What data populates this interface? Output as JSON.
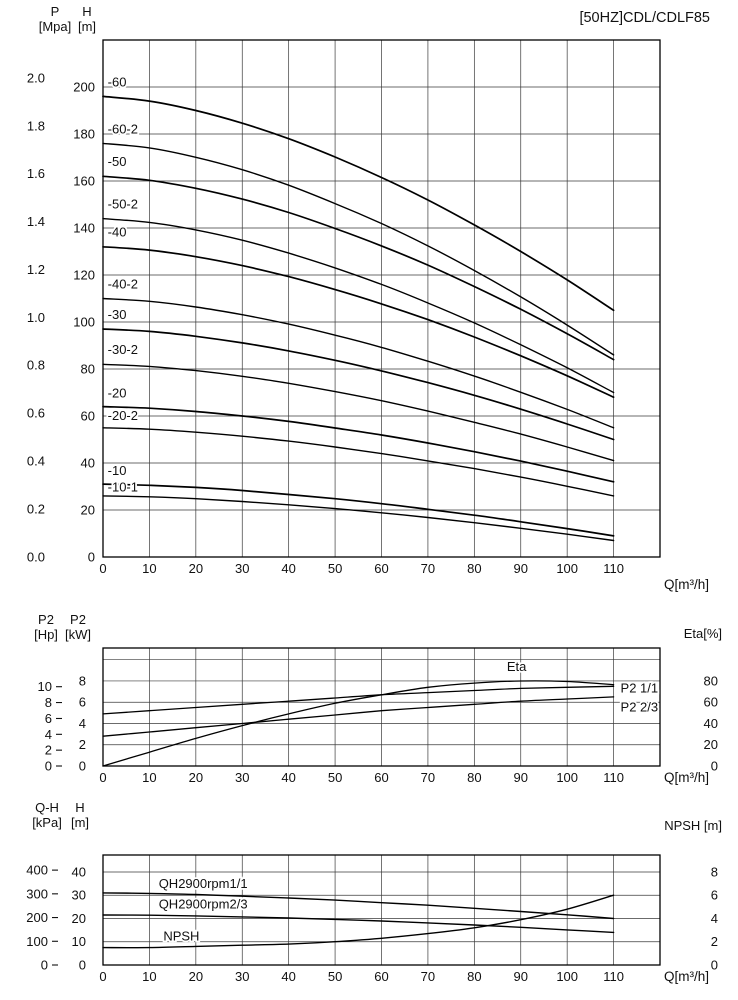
{
  "title": "[50HZ]CDL/CDLF85",
  "x_axis_label": "Q[m³/h]",
  "charts": {
    "hq": {
      "axis_headers": {
        "outer_top": "P",
        "outer_unit": "[Mpa]",
        "inner_top": "H",
        "inner_unit": "[m]"
      },
      "x_label": "Q[m³/h]"
    },
    "power": {
      "axis_headers": {
        "outer_top": "P2",
        "outer_unit": "[Hp]",
        "inner_top": "P2",
        "inner_unit": "[kW]"
      },
      "right_label": "Eta[%]",
      "x_label": "Q[m³/h]"
    },
    "qh": {
      "axis_headers": {
        "outer_top": "Q-H",
        "outer_unit": "[kPa]",
        "inner_top": "H",
        "inner_unit": "[m]"
      },
      "right_label": "NPSH [m]",
      "x_label": "Q[m³/h]"
    }
  },
  "chart_data": [
    {
      "type": "line",
      "title": "[50HZC]DL/CDLF85 head curves",
      "xlabel": "Q[m³/h]",
      "ylabels": [
        "P [Mpa]",
        "H [m]"
      ],
      "xlim": [
        0,
        120
      ],
      "ylim_m": [
        0,
        220
      ],
      "x_ticks": [
        0,
        10,
        20,
        30,
        40,
        50,
        60,
        70,
        80,
        90,
        100,
        110
      ],
      "x": [
        0,
        10,
        20,
        30,
        40,
        50,
        60,
        70,
        80,
        90,
        100,
        110
      ],
      "grid_scale": "H",
      "grid_y": [
        20,
        40,
        60,
        80,
        100,
        120,
        140,
        160,
        180,
        200
      ],
      "tick_cols": [
        {
          "axis": "P [Mpa]",
          "items": [
            {
              "t": "0.0",
              "v": 0
            },
            {
              "t": "0.2",
              "v": 20.4
            },
            {
              "t": "0.4",
              "v": 40.8
            },
            {
              "t": "0.6",
              "v": 61.2
            },
            {
              "t": "0.8",
              "v": 81.6
            },
            {
              "t": "1.0",
              "v": 101.9
            },
            {
              "t": "1.2",
              "v": 122.3
            },
            {
              "t": "1.4",
              "v": 142.7
            },
            {
              "t": "1.6",
              "v": 163.1
            },
            {
              "t": "1.8",
              "v": 183.5
            },
            {
              "t": "2.0",
              "v": 203.9
            }
          ]
        },
        {
          "axis": "H [m]",
          "items": [
            {
              "t": "0",
              "v": 0
            },
            {
              "t": "20",
              "v": 20
            },
            {
              "t": "40",
              "v": 40
            },
            {
              "t": "60",
              "v": 60
            },
            {
              "t": "80",
              "v": 80
            },
            {
              "t": "100",
              "v": 100
            },
            {
              "t": "120",
              "v": 120
            },
            {
              "t": "140",
              "v": 140
            },
            {
              "t": "160",
              "v": 160
            },
            {
              "t": "180",
              "v": 180
            },
            {
              "t": "200",
              "v": 200
            }
          ]
        }
      ],
      "series": [
        {
          "name": "-60",
          "scale": "H",
          "w": 1.7,
          "label": [
            1,
            202
          ],
          "y": [
            196,
            194,
            190,
            184.6,
            178,
            170.2,
            161.5,
            151.9,
            141.3,
            130,
            117.9,
            105
          ]
        },
        {
          "name": "-60-2",
          "scale": "H",
          "w": 1.4,
          "label": [
            1,
            182
          ],
          "y": [
            176,
            174.1,
            170.1,
            164.8,
            158.2,
            150.4,
            141.9,
            132.4,
            121.9,
            110.7,
            98.7,
            86
          ]
        },
        {
          "name": "-50",
          "scale": "H",
          "w": 1.7,
          "label": [
            1,
            168
          ],
          "y": [
            162,
            160.3,
            156.9,
            152.3,
            146.6,
            139.8,
            132.4,
            124.2,
            115.1,
            105.4,
            95,
            84
          ]
        },
        {
          "name": "-50-2",
          "scale": "H",
          "w": 1.4,
          "label": [
            1,
            150
          ],
          "y": [
            144,
            142.4,
            139.2,
            134.8,
            129.3,
            123,
            116,
            108.1,
            99.6,
            90.3,
            80.5,
            70
          ]
        },
        {
          "name": "-40",
          "scale": "H",
          "w": 1.7,
          "label": [
            1,
            138
          ],
          "y": [
            132,
            130.6,
            127.8,
            124,
            119.3,
            113.8,
            107.7,
            101,
            93.6,
            85.6,
            77.1,
            68
          ]
        },
        {
          "name": "-40-2",
          "scale": "H",
          "w": 1.4,
          "label": [
            1,
            116
          ],
          "y": [
            110,
            108.8,
            106.4,
            103.1,
            99.1,
            94.4,
            89.2,
            83.3,
            77,
            70.1,
            62.8,
            55
          ]
        },
        {
          "name": "-30",
          "scale": "H",
          "w": 1.7,
          "label": [
            1,
            103
          ],
          "y": [
            97,
            96,
            93.9,
            91.1,
            87.7,
            83.7,
            79.2,
            74.2,
            68.8,
            62.9,
            56.6,
            50
          ]
        },
        {
          "name": "-30-2",
          "scale": "H",
          "w": 1.4,
          "label": [
            1,
            88
          ],
          "y": [
            82,
            81.1,
            79.3,
            76.9,
            73.9,
            70.4,
            66.5,
            62.1,
            57.3,
            52.3,
            46.8,
            41
          ]
        },
        {
          "name": "-20",
          "scale": "H",
          "w": 1.7,
          "label": [
            1,
            69.5
          ],
          "y": [
            64,
            63.3,
            61.9,
            60,
            57.7,
            54.9,
            51.9,
            48.5,
            44.8,
            40.8,
            36.5,
            32
          ]
        },
        {
          "name": "-20-2",
          "scale": "H",
          "w": 1.4,
          "label": [
            1,
            60
          ],
          "y": [
            55,
            54.4,
            53.1,
            51.4,
            49.3,
            46.8,
            44,
            40.9,
            37.6,
            34,
            30.1,
            26
          ]
        },
        {
          "name": "-10",
          "scale": "H",
          "w": 1.7,
          "label": [
            1,
            36.5
          ],
          "y": [
            31,
            30.5,
            29.6,
            28.3,
            26.6,
            24.8,
            22.7,
            20.3,
            17.8,
            15,
            12.1,
            9
          ]
        },
        {
          "name": "-10-1",
          "scale": "H",
          "w": 1.4,
          "label": [
            1,
            29.5
          ],
          "y": [
            26,
            25.6,
            24.8,
            23.6,
            22.2,
            20.6,
            18.8,
            16.8,
            14.6,
            12.2,
            9.7,
            7
          ]
        }
      ]
    },
    {
      "type": "line",
      "title": "Power and efficiency curves",
      "xlabel": "Q[m³/h]",
      "ylabels": [
        "P2 [Hp]",
        "P2 [kW]"
      ],
      "right_label": "Eta[%]",
      "xlim": [
        0,
        120
      ],
      "ylim_kw": [
        0,
        11.1
      ],
      "ylim_eta": [
        0,
        111
      ],
      "x_ticks": [
        0,
        10,
        20,
        30,
        40,
        50,
        60,
        70,
        80,
        90,
        100,
        110
      ],
      "x": [
        0,
        10,
        20,
        30,
        40,
        50,
        60,
        70,
        80,
        90,
        100,
        110
      ],
      "grid_scale": "kw",
      "grid_y": [
        2,
        4,
        6,
        8,
        10
      ],
      "tick_cols": [
        {
          "axis": "P2 [Hp]",
          "items": [
            {
              "t": "0",
              "v": 0
            },
            {
              "t": "2",
              "v": 1.49
            },
            {
              "t": "4",
              "v": 2.98
            },
            {
              "t": "6",
              "v": 4.47
            },
            {
              "t": "8",
              "v": 5.97
            },
            {
              "t": "10",
              "v": 7.46
            }
          ]
        },
        {
          "axis": "P2 [kW]",
          "items": [
            {
              "t": "0",
              "v": 0
            },
            {
              "t": "2",
              "v": 2
            },
            {
              "t": "4",
              "v": 4
            },
            {
              "t": "6",
              "v": 6
            },
            {
              "t": "8",
              "v": 8
            }
          ]
        },
        {
          "axis": "Eta [%]",
          "items": [
            {
              "t": "0",
              "v": 0
            },
            {
              "t": "20",
              "v": 20
            },
            {
              "t": "40",
              "v": 40
            },
            {
              "t": "60",
              "v": 60
            },
            {
              "t": "80",
              "v": 80
            }
          ]
        }
      ],
      "series": [
        {
          "name": "Eta",
          "scale": "eta",
          "w": 1.3,
          "label": [
            87,
            93
          ],
          "y": [
            0,
            13,
            26,
            38,
            49,
            59,
            67,
            74,
            78,
            80,
            79.5,
            76.5
          ]
        },
        {
          "name": "P2 1/1",
          "scale": "kw",
          "w": 1.3,
          "label": [
            111.5,
            7.3
          ],
          "y": [
            4.9,
            5.2,
            5.5,
            5.8,
            6.1,
            6.4,
            6.7,
            6.9,
            7.1,
            7.3,
            7.4,
            7.5
          ]
        },
        {
          "name": "P2 2/3",
          "scale": "kw",
          "w": 1.3,
          "label": [
            111.5,
            5.5
          ],
          "y": [
            2.8,
            3.2,
            3.6,
            4,
            4.4,
            4.8,
            5.2,
            5.5,
            5.8,
            6.1,
            6.3,
            6.5
          ]
        }
      ]
    },
    {
      "type": "line",
      "title": "Single stage head and NPSH curves",
      "xlabel": "Q[m³/h]",
      "ylabels": [
        "Q-H [kPa]",
        "H [m]"
      ],
      "right_label": "NPSH [m]",
      "xlim": [
        0,
        120
      ],
      "ylim_m": [
        0,
        47.3
      ],
      "ylim_npsh": [
        0,
        9.46
      ],
      "x_ticks": [
        0,
        10,
        20,
        30,
        40,
        50,
        60,
        70,
        80,
        90,
        100,
        110
      ],
      "x": [
        0,
        10,
        20,
        30,
        40,
        50,
        60,
        70,
        80,
        90,
        100,
        110
      ],
      "grid_scale": "m",
      "grid_y": [
        10,
        20,
        30,
        40
      ],
      "tick_cols": [
        {
          "axis": "Q-H [kPa]",
          "items": [
            {
              "t": "0",
              "v": 0
            },
            {
              "t": "100",
              "v": 10.2
            },
            {
              "t": "200",
              "v": 20.4
            },
            {
              "t": "300",
              "v": 30.6
            },
            {
              "t": "400",
              "v": 40.8
            }
          ]
        },
        {
          "axis": "H [m]",
          "items": [
            {
              "t": "0",
              "v": 0
            },
            {
              "t": "10",
              "v": 10
            },
            {
              "t": "20",
              "v": 20
            },
            {
              "t": "30",
              "v": 30
            },
            {
              "t": "40",
              "v": 40
            }
          ]
        },
        {
          "axis": "NPSH [m]",
          "items": [
            {
              "t": "0",
              "v": 0
            },
            {
              "t": "2",
              "v": 2
            },
            {
              "t": "4",
              "v": 4
            },
            {
              "t": "6",
              "v": 6
            },
            {
              "t": "8",
              "v": 8
            }
          ]
        }
      ],
      "series": [
        {
          "name": "QH2900rpm1/1",
          "scale": "m",
          "w": 1.4,
          "label": [
            12,
            34.8
          ],
          "y": [
            31,
            30.8,
            30.3,
            29.6,
            28.8,
            27.9,
            26.8,
            25.7,
            24.4,
            23,
            21.6,
            20
          ]
        },
        {
          "name": "QH2900rpm2/3",
          "scale": "m",
          "w": 1.4,
          "label": [
            12,
            26
          ],
          "y": [
            21.5,
            21.4,
            21.1,
            20.7,
            20.2,
            19.6,
            18.9,
            18.1,
            17.2,
            16.2,
            15.1,
            14
          ]
        },
        {
          "name": "NPSH",
          "scale": "npsh",
          "w": 1.4,
          "label": [
            13,
            2.45
          ],
          "y": [
            1.5,
            1.5,
            1.6,
            1.7,
            1.8,
            2,
            2.3,
            2.7,
            3.2,
            3.9,
            4.8,
            6
          ]
        }
      ]
    }
  ]
}
